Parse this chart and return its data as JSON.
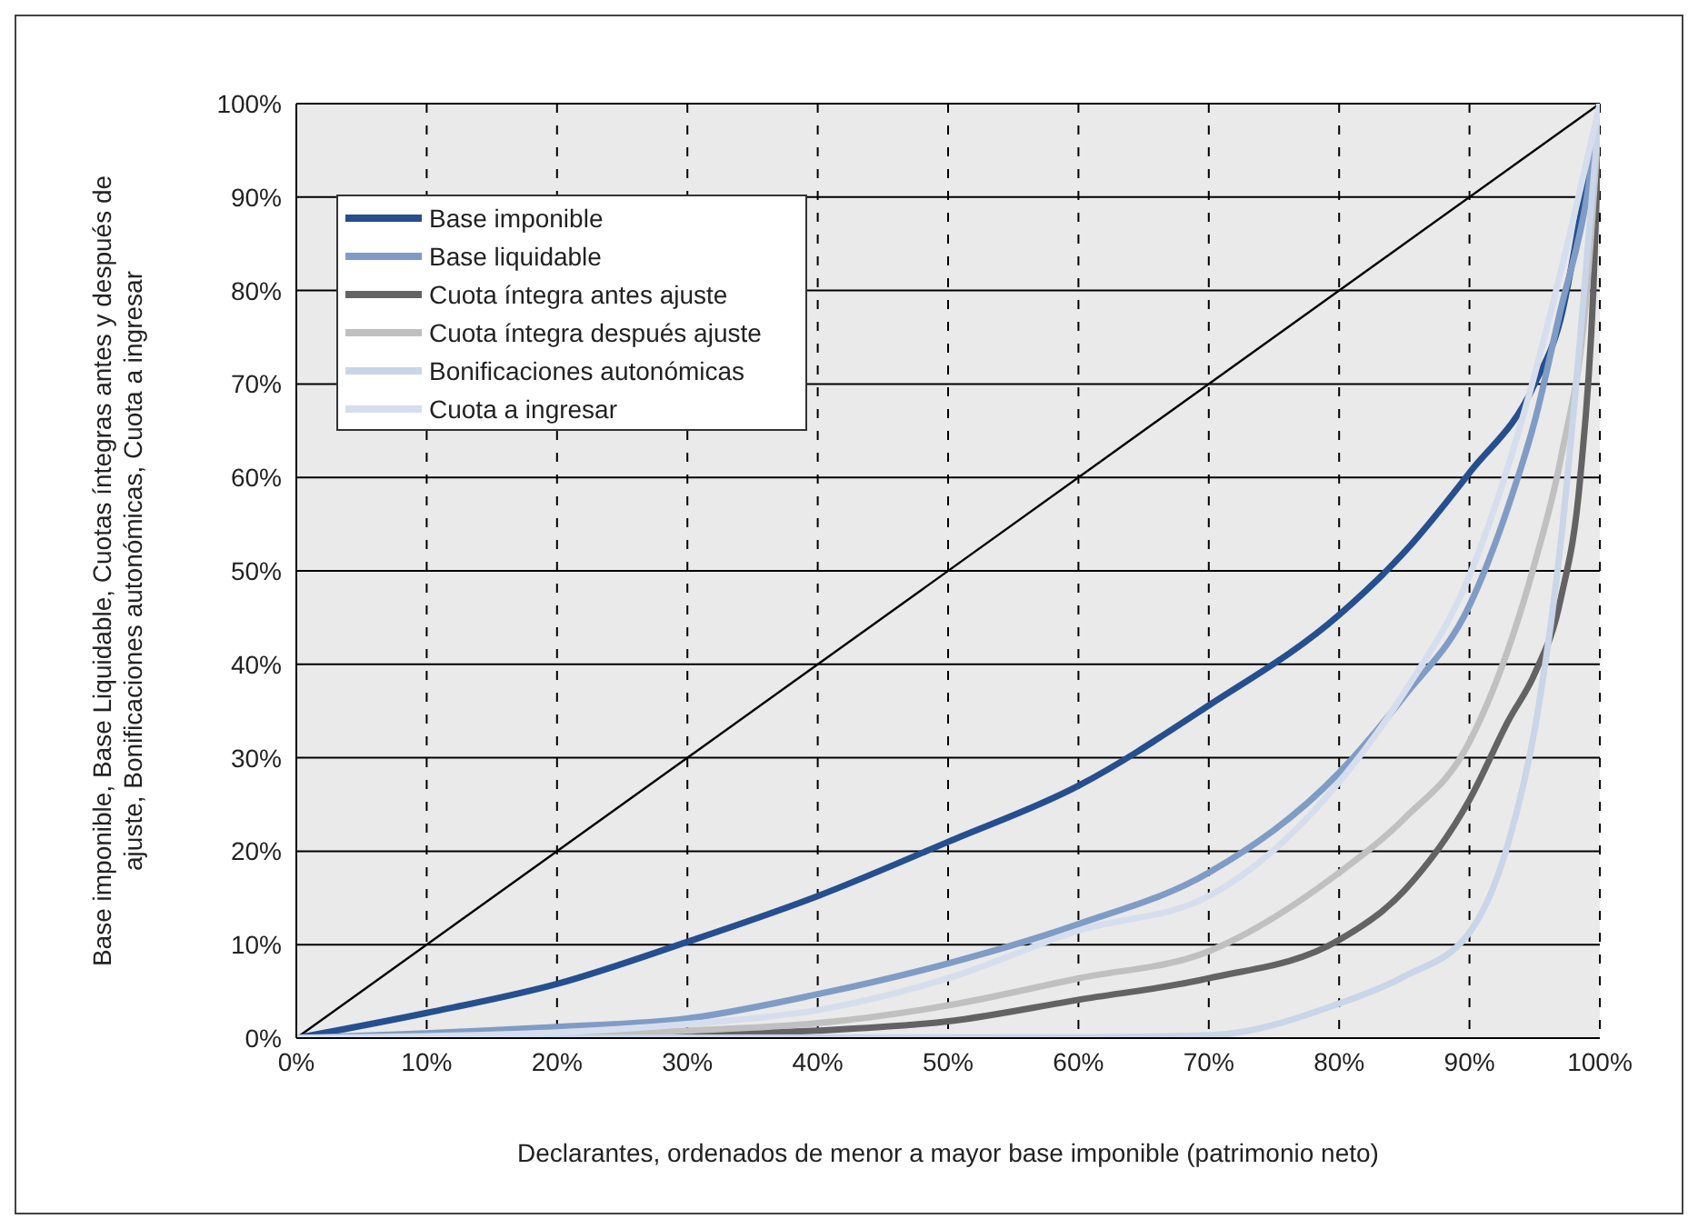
{
  "chart_data": {
    "type": "line",
    "xlabel": "Declarantes, ordenados de menor a mayor base imponible (patrimonio neto)",
    "ylabel": "Base imponible, Base Liquidable, Cuotas íntegras antes y después de ajuste, Bonificaciones autonómicas, Cuota a ingresar",
    "xlim": [
      0,
      100
    ],
    "ylim": [
      0,
      100
    ],
    "xticks": [
      {
        "value": 0,
        "label": "0%"
      },
      {
        "value": 10,
        "label": "10%"
      },
      {
        "value": 20,
        "label": "20%"
      },
      {
        "value": 30,
        "label": "30%"
      },
      {
        "value": 40,
        "label": "40%"
      },
      {
        "value": 50,
        "label": "50%"
      },
      {
        "value": 60,
        "label": "60%"
      },
      {
        "value": 70,
        "label": "70%"
      },
      {
        "value": 80,
        "label": "80%"
      },
      {
        "value": 90,
        "label": "90%"
      },
      {
        "value": 100,
        "label": "100%"
      }
    ],
    "yticks": [
      {
        "value": 0,
        "label": "0%"
      },
      {
        "value": 10,
        "label": "10%"
      },
      {
        "value": 20,
        "label": "20%"
      },
      {
        "value": 30,
        "label": "30%"
      },
      {
        "value": 40,
        "label": "40%"
      },
      {
        "value": 50,
        "label": "50%"
      },
      {
        "value": 60,
        "label": "60%"
      },
      {
        "value": 70,
        "label": "70%"
      },
      {
        "value": 80,
        "label": "80%"
      },
      {
        "value": 90,
        "label": "90%"
      },
      {
        "value": 100,
        "label": "100%"
      }
    ],
    "grid": true,
    "legend": "top left",
    "marker": "none",
    "line_style": "solid",
    "series": [
      {
        "color": "#000000",
        "x": [
          0,
          100
        ],
        "values": [
          0,
          100
        ]
      },
      {
        "name": "Base imponible",
        "color": "#254f8f",
        "x": [
          0,
          10,
          20,
          30,
          40,
          50,
          60,
          70,
          80,
          85,
          90,
          95,
          97,
          99,
          100
        ],
        "values": [
          0,
          2.7,
          5.8,
          10.3,
          15.2,
          21,
          27,
          35.6,
          45.3,
          52,
          60.5,
          70,
          77,
          92,
          100
        ]
      },
      {
        "name": "Base liquidable",
        "color": "#7f9cc6",
        "x": [
          0,
          10,
          20,
          30,
          40,
          50,
          60,
          70,
          80,
          85,
          90,
          93,
          95,
          97,
          99,
          100
        ],
        "values": [
          0,
          0.5,
          1.2,
          2.1,
          4.7,
          8,
          12.2,
          17.7,
          28.4,
          36.6,
          46.3,
          57,
          66,
          78,
          90,
          100
        ]
      },
      {
        "name": "Cuota íntegra antes ajuste",
        "color": "#636363",
        "x": [
          0,
          30,
          40,
          50,
          60,
          70,
          80,
          85,
          90,
          93,
          95,
          97,
          98.5,
          99.5,
          100
        ],
        "values": [
          0,
          0.4,
          0.8,
          1.8,
          4.1,
          6.4,
          10.5,
          15.8,
          25.5,
          34,
          39,
          47,
          60,
          80,
          100
        ]
      },
      {
        "name": "Cuota íntegra después ajuste",
        "color": "#c0c0c0",
        "x": [
          0,
          20,
          30,
          40,
          50,
          60,
          70,
          80,
          85,
          90,
          95,
          97,
          99,
          100
        ],
        "values": [
          0,
          0.3,
          0.8,
          1.6,
          3.5,
          6.4,
          9.3,
          17.7,
          23.5,
          31.7,
          50.8,
          62,
          80,
          100
        ]
      },
      {
        "name": "Bonificaciones autonómicas",
        "color": "#c9d5e8",
        "x": [
          0,
          60,
          70,
          80,
          85,
          90,
          93,
          95,
          97,
          98.5,
          100
        ],
        "values": [
          0,
          0.1,
          0.3,
          3.7,
          6.6,
          11.3,
          21,
          33,
          53,
          75,
          100
        ]
      },
      {
        "name": "Cuota a ingresar",
        "color": "#d6deed",
        "x": [
          0,
          10,
          20,
          30,
          40,
          50,
          60,
          70,
          80,
          85,
          90,
          95,
          97,
          100
        ],
        "values": [
          0,
          0.2,
          0.6,
          1.5,
          3,
          6.4,
          11.5,
          15.2,
          27.4,
          37,
          49.5,
          71,
          82,
          100
        ]
      }
    ]
  }
}
